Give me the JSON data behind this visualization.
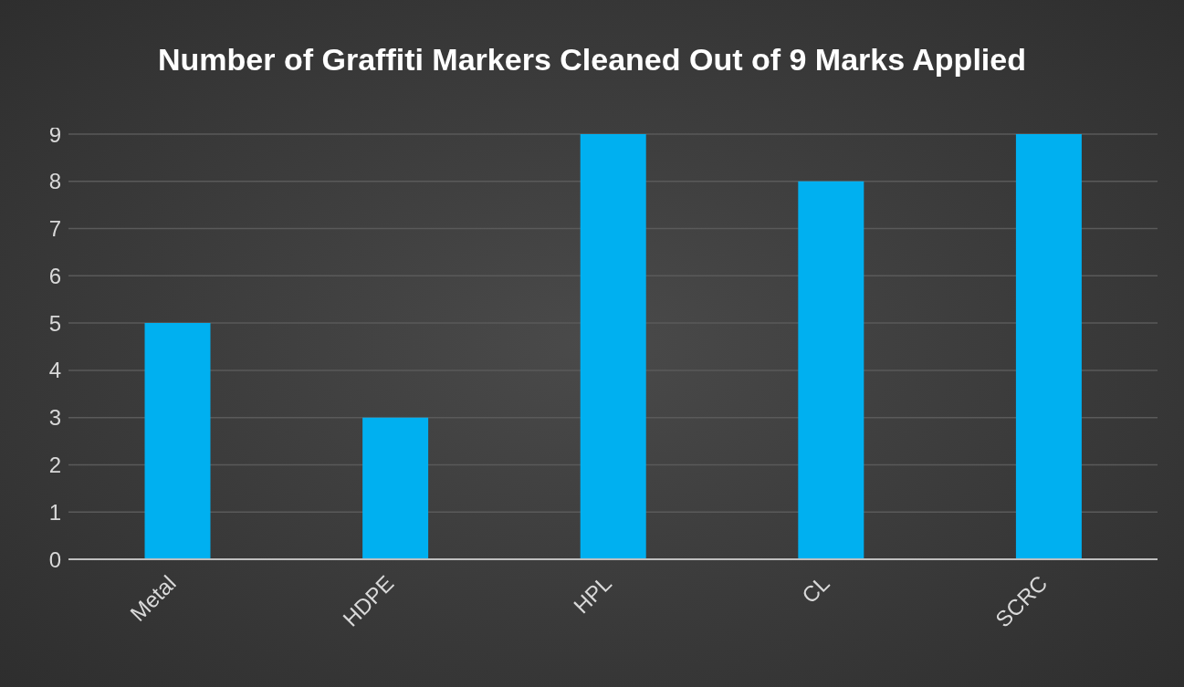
{
  "chart_data": {
    "type": "bar",
    "title": "Number of Graffiti Markers Cleaned Out of 9 Marks Applied",
    "categories": [
      "Metal",
      "HDPE",
      "HPL",
      "CL",
      "SCRC"
    ],
    "values": [
      5,
      3,
      9,
      8,
      9
    ],
    "color": "#00b0f0",
    "ylim": [
      0,
      9
    ],
    "yticks": [
      0,
      1,
      2,
      3,
      4,
      5,
      6,
      7,
      8,
      9
    ],
    "grid": "y",
    "legend": false
  }
}
